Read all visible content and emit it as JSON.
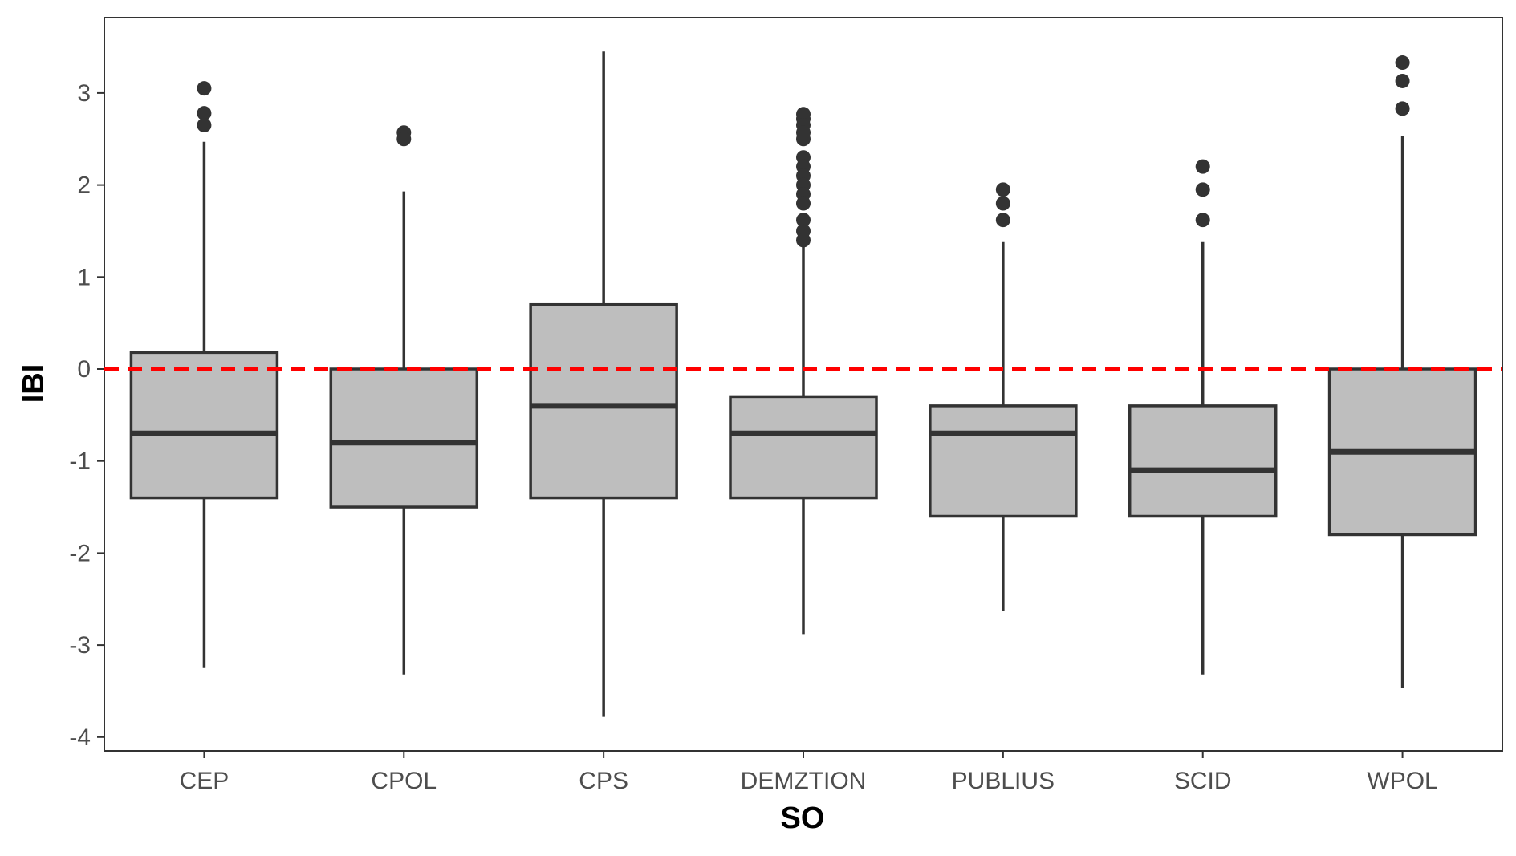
{
  "chart_data": {
    "type": "box",
    "title": "",
    "xlabel": "SO",
    "ylabel": "IBI",
    "ylim": [
      -4.2,
      3.8
    ],
    "yticks": [
      3,
      2,
      1,
      0,
      -1,
      -2,
      -3,
      -4
    ],
    "ytick_labels": [
      "3",
      "2",
      "1",
      "0",
      "-1",
      "-2",
      "-3",
      "-4"
    ],
    "reference_line": {
      "y": 0,
      "style": "dashed",
      "color": "#ff0000"
    },
    "grid": false,
    "legend": "none",
    "box_fill": "#bebebe",
    "box_stroke": "#333333",
    "categories": [
      "CEP",
      "CPOL",
      "CPS",
      "DEMZTION",
      "PUBLIUS",
      "SCID",
      "WPOL"
    ],
    "boxes": [
      {
        "category": "CEP",
        "q1": -1.4,
        "median": -0.7,
        "q3": 0.18,
        "whisker_low": -3.25,
        "whisker_high": 2.47,
        "outliers": [
          3.05,
          2.78,
          2.65
        ]
      },
      {
        "category": "CPOL",
        "q1": -1.5,
        "median": -0.8,
        "q3": 0.0,
        "whisker_low": -3.32,
        "whisker_high": 1.93,
        "outliers": [
          2.57,
          2.5
        ]
      },
      {
        "category": "CPS",
        "q1": -1.4,
        "median": -0.4,
        "q3": 0.7,
        "whisker_low": -3.78,
        "whisker_high": 3.45,
        "outliers": []
      },
      {
        "category": "DEMZTION",
        "q1": -1.4,
        "median": -0.7,
        "q3": -0.3,
        "whisker_low": -2.88,
        "whisker_high": 1.37,
        "outliers": [
          2.77,
          2.72,
          2.65,
          2.57,
          2.5,
          2.3,
          2.2,
          2.1,
          2.0,
          1.9,
          1.8,
          1.62,
          1.5,
          1.4
        ]
      },
      {
        "category": "PUBLIUS",
        "q1": -1.6,
        "median": -0.7,
        "q3": -0.4,
        "whisker_low": -2.63,
        "whisker_high": 1.38,
        "outliers": [
          1.95,
          1.8,
          1.62
        ]
      },
      {
        "category": "SCID",
        "q1": -1.6,
        "median": -1.1,
        "q3": -0.4,
        "whisker_low": -3.32,
        "whisker_high": 1.38,
        "outliers": [
          2.2,
          1.95,
          1.62
        ]
      },
      {
        "category": "WPOL",
        "q1": -1.8,
        "median": -0.9,
        "q3": 0.0,
        "whisker_low": -3.47,
        "whisker_high": 2.53,
        "outliers": [
          3.33,
          3.13,
          2.83
        ]
      }
    ]
  }
}
